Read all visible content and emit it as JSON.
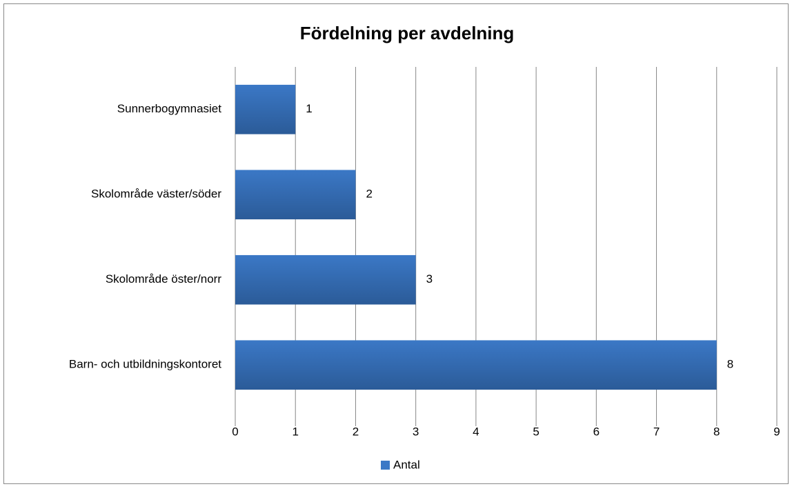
{
  "chart_data": {
    "type": "bar",
    "orientation": "horizontal",
    "title": "Fördelning per avdelning",
    "categories": [
      "Sunnerbogymnasiet",
      "Skolområde väster/söder",
      "Skolområde öster/norr",
      "Barn- och utbildningskontoret"
    ],
    "series": [
      {
        "name": "Antal",
        "color": "#3b78c6",
        "values": [
          1,
          2,
          3,
          8
        ]
      }
    ],
    "xlim": [
      0,
      9
    ],
    "xticks": [
      0,
      1,
      2,
      3,
      4,
      5,
      6,
      7,
      8,
      9
    ],
    "grid": true,
    "legend": "bottom"
  }
}
